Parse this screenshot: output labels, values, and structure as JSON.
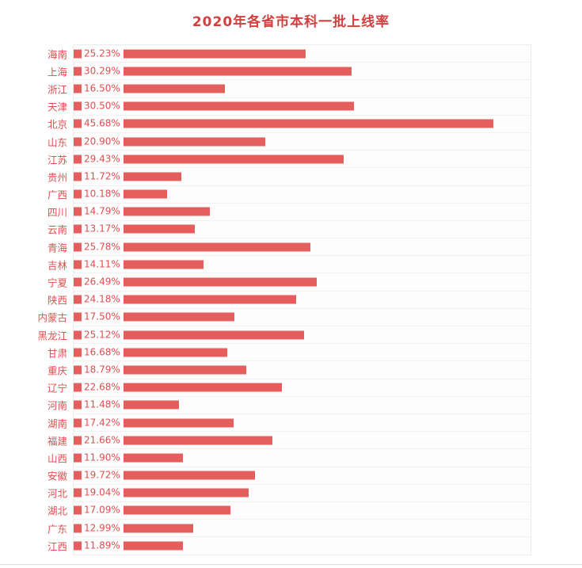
{
  "title": "2020年各省市本科一批上线率",
  "chart_data": {
    "type": "bar",
    "orientation": "horizontal",
    "title": "2020年各省市本科一批上线率",
    "categories": [
      "海南",
      "上海",
      "浙江",
      "天津",
      "北京",
      "山东",
      "江苏",
      "贵州",
      "广西",
      "四川",
      "云南",
      "青海",
      "吉林",
      "宁夏",
      "陕西",
      "内蒙古",
      "黑龙江",
      "甘肃",
      "重庆",
      "辽宁",
      "河南",
      "湖南",
      "福建",
      "山西",
      "安徽",
      "河北",
      "湖北",
      "广东",
      "江西"
    ],
    "values": [
      25.23,
      30.29,
      16.5,
      30.5,
      45.68,
      20.9,
      29.43,
      11.72,
      10.18,
      14.79,
      13.17,
      25.78,
      14.11,
      26.49,
      24.18,
      17.5,
      25.12,
      16.68,
      18.79,
      22.68,
      11.48,
      17.42,
      21.66,
      11.9,
      19.72,
      19.04,
      17.09,
      12.99,
      11.89
    ],
    "value_labels": [
      "25.23%",
      "30.29%",
      "16.50%",
      "30.50%",
      "45.68%",
      "20.90%",
      "29.43%",
      "11.72%",
      "10.18%",
      "14.79%",
      "13.17%",
      "25.78%",
      "14.11%",
      "26.49%",
      "24.18%",
      "17.50%",
      "25.12%",
      "16.68%",
      "18.79%",
      "22.68%",
      "11.48%",
      "17.42%",
      "21.66%",
      "11.90%",
      "19.72%",
      "19.04%",
      "17.09%",
      "12.99%",
      "11.89%"
    ],
    "xlim": [
      0,
      50
    ],
    "grid": true,
    "legend": false,
    "bar_color": "#e35e5c",
    "label_color": "#e04f4f",
    "title_color": "#d43f3f",
    "value_label_position": "inside-left"
  }
}
